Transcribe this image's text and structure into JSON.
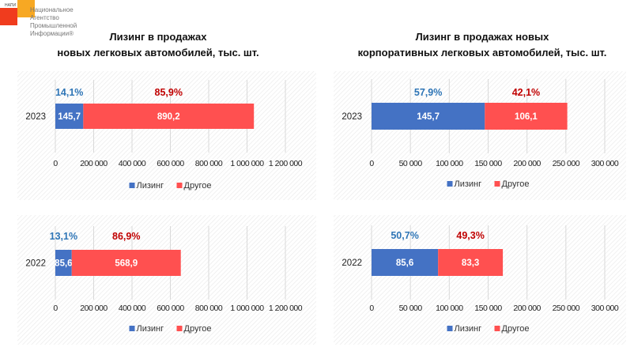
{
  "logo": {
    "abbr": "НАПИ",
    "lines": [
      "Национальное",
      "Агентство",
      "Промышленной",
      "Информации®"
    ]
  },
  "titles": {
    "left": [
      "Лизинг в продажах",
      "новых легковых автомобилей, тыс. шт."
    ],
    "right": [
      "Лизинг в продажах новых",
      "корпоративных легковых автомобилей, тыс. шт."
    ]
  },
  "colors": {
    "leasing": "#4472C4",
    "other": "#FF5050",
    "pct_leasing": "#2E75B6",
    "pct_other": "#C00000"
  },
  "chart_data": [
    {
      "type": "bar",
      "orientation": "horizontal-stacked",
      "title": "Лизинг в продажах новых легковых автомобилей, тыс. шт.",
      "category": "2023",
      "series": [
        {
          "name": "Лизинг",
          "value": 145700,
          "label": "145,7",
          "pct": "14,1%"
        },
        {
          "name": "Другое",
          "value": 890200,
          "label": "890,2",
          "pct": "85,9%"
        }
      ],
      "xlim": [
        0,
        1200000
      ],
      "ticks": [
        0,
        200000,
        400000,
        600000,
        800000,
        1000000,
        1200000
      ],
      "tick_labels": [
        "0",
        "200 000",
        "400 000",
        "600 000",
        "800 000",
        "1 000 000",
        "1 200 000"
      ],
      "legend": [
        "Лизинг",
        "Другое"
      ],
      "legend_position": "bottom"
    },
    {
      "type": "bar",
      "orientation": "horizontal-stacked",
      "title": "Лизинг в продажах новых корпоративных легковых автомобилей, тыс. шт.",
      "category": "2023",
      "series": [
        {
          "name": "Лизинг",
          "value": 145700,
          "label": "145,7",
          "pct": "57,9%"
        },
        {
          "name": "Другое",
          "value": 106100,
          "label": "106,1",
          "pct": "42,1%"
        }
      ],
      "xlim": [
        0,
        300000
      ],
      "ticks": [
        0,
        50000,
        100000,
        150000,
        200000,
        250000,
        300000
      ],
      "tick_labels": [
        "0",
        "50 000",
        "100 000",
        "150 000",
        "200 000",
        "250 000",
        "300 000"
      ],
      "legend": [
        "Лизинг",
        "Другое"
      ],
      "legend_position": "bottom"
    },
    {
      "type": "bar",
      "orientation": "horizontal-stacked",
      "title": "Лизинг в продажах новых легковых автомобилей, тыс. шт.",
      "category": "2022",
      "series": [
        {
          "name": "Лизинг",
          "value": 85600,
          "label": "85,6",
          "pct": "13,1%"
        },
        {
          "name": "Другое",
          "value": 568900,
          "label": "568,9",
          "pct": "86,9%"
        }
      ],
      "xlim": [
        0,
        1200000
      ],
      "ticks": [
        0,
        200000,
        400000,
        600000,
        800000,
        1000000,
        1200000
      ],
      "tick_labels": [
        "0",
        "200 000",
        "400 000",
        "600 000",
        "800 000",
        "1 000 000",
        "1 200 000"
      ],
      "legend": [
        "Лизинг",
        "Другое"
      ],
      "legend_position": "bottom"
    },
    {
      "type": "bar",
      "orientation": "horizontal-stacked",
      "title": "Лизинг в продажах новых корпоративных легковых автомобилей, тыс. шт.",
      "category": "2022",
      "series": [
        {
          "name": "Лизинг",
          "value": 85600,
          "label": "85,6",
          "pct": "50,7%"
        },
        {
          "name": "Другое",
          "value": 83300,
          "label": "83,3",
          "pct": "49,3%"
        }
      ],
      "xlim": [
        0,
        300000
      ],
      "ticks": [
        0,
        50000,
        100000,
        150000,
        200000,
        250000,
        300000
      ],
      "tick_labels": [
        "0",
        "50 000",
        "100 000",
        "150 000",
        "200 000",
        "250 000",
        "300 000"
      ],
      "legend": [
        "Лизинг",
        "Другое"
      ],
      "legend_position": "bottom"
    }
  ]
}
